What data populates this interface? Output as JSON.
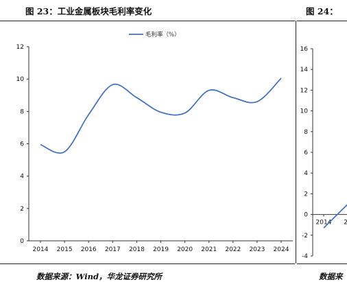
{
  "figures": {
    "left_title": "图 23：工业金属板块毛利率变化",
    "right_title": "图 24：",
    "left_source": "数据来源：Wind，华龙证券研究所",
    "right_source": "数据来"
  },
  "chart_data": [
    {
      "type": "line",
      "title": "图 23：工业金属板块毛利率变化",
      "categories": [
        "2014",
        "2015",
        "2016",
        "2017",
        "2018",
        "2019",
        "2020",
        "2021",
        "2022",
        "2023",
        "2024"
      ],
      "series": [
        {
          "name": "毛利率（%）",
          "color": "#4472c4",
          "values": [
            5.95,
            5.5,
            7.8,
            9.65,
            8.85,
            7.95,
            7.9,
            9.3,
            8.85,
            8.6,
            10.05
          ]
        }
      ],
      "ylim": [
        0,
        12
      ],
      "yticks": [
        0,
        2,
        4,
        6,
        8,
        10,
        12
      ],
      "legend": "top-center",
      "grid": false
    },
    {
      "type": "line",
      "title": "图 24：",
      "categories": [
        "2014",
        "20"
      ],
      "series": [
        {
          "color": "#4472c4",
          "values": [
            -1.3,
            1.0
          ]
        }
      ],
      "ylim": [
        -4,
        16
      ],
      "yticks": [
        -4,
        -2,
        0,
        2,
        4,
        6,
        8,
        10,
        12,
        14,
        16
      ],
      "grid": false
    }
  ]
}
